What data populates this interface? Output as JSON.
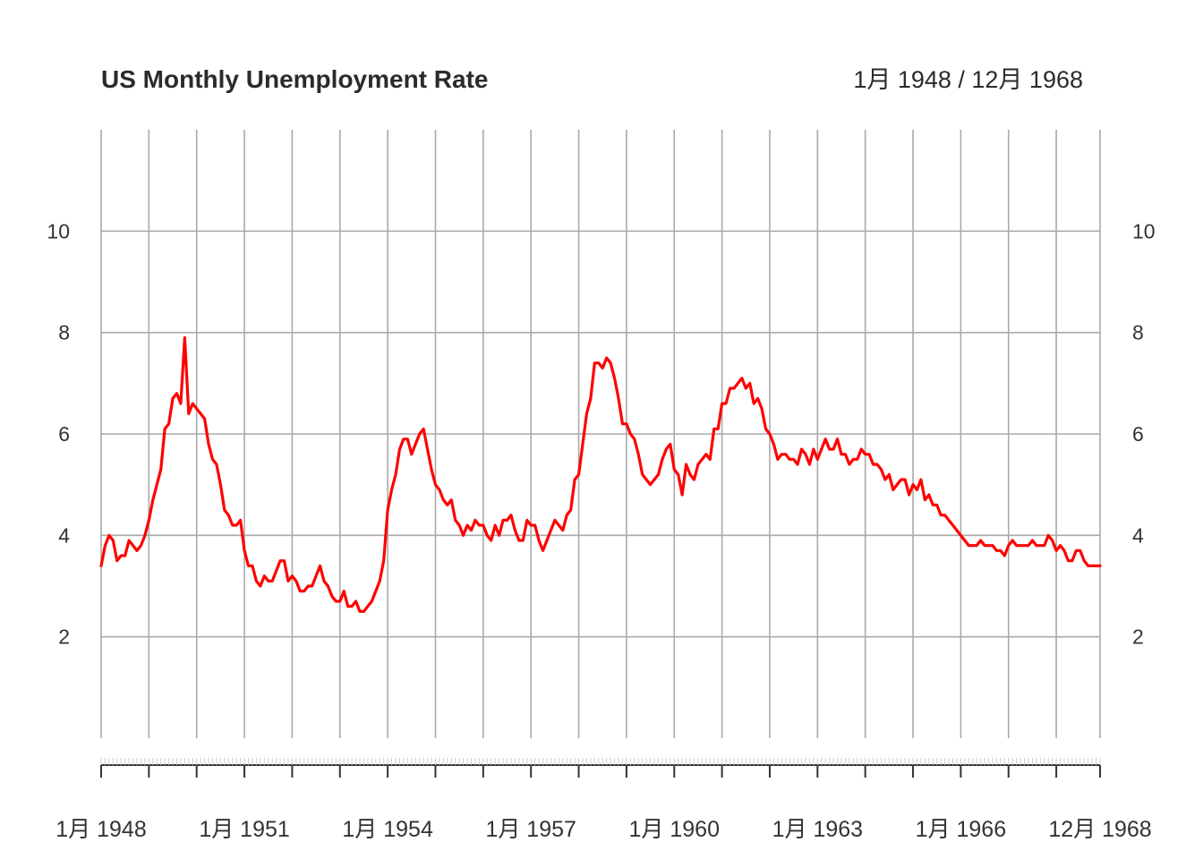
{
  "chart_data": {
    "type": "line",
    "title": "US Monthly Unemployment Rate",
    "date_range_label": "1月 1948 / 12月 1968",
    "xlabel": "",
    "ylabel": "",
    "ylim": [
      0,
      12
    ],
    "yticks": [
      2,
      4,
      6,
      8,
      10
    ],
    "ytick_labels": [
      "2",
      "4",
      "6",
      "8",
      "10"
    ],
    "x_start": "1948-01",
    "x_end": "1968-12",
    "xtick_labels": [
      {
        "date": "1948-01",
        "label": "1月 1948"
      },
      {
        "date": "1951-01",
        "label": "1月 1951"
      },
      {
        "date": "1954-01",
        "label": "1月 1954"
      },
      {
        "date": "1957-01",
        "label": "1月 1957"
      },
      {
        "date": "1960-01",
        "label": "1月 1960"
      },
      {
        "date": "1963-01",
        "label": "1月 1963"
      },
      {
        "date": "1966-01",
        "label": "1月 1966"
      },
      {
        "date": "1968-12",
        "label": "12月 1968"
      }
    ],
    "grid": true,
    "legend": "none",
    "colors": {
      "line": "#ff0000",
      "grid": "#aaaaaa",
      "text": "#333333"
    },
    "series": [
      {
        "color": "#ff0000",
        "values": [
          [
            3.4,
            3.8,
            4.0,
            3.9,
            3.5,
            3.6,
            3.6,
            3.9,
            3.8,
            3.7,
            3.8,
            4.0
          ],
          [
            4.3,
            4.7,
            5.0,
            5.3,
            6.1,
            6.2,
            6.7,
            6.8,
            6.6,
            7.9,
            6.4,
            6.6
          ],
          [
            6.5,
            6.4,
            6.3,
            5.8,
            5.5,
            5.4,
            5.0,
            4.5,
            4.4,
            4.2,
            4.2,
            4.3
          ],
          [
            3.7,
            3.4,
            3.4,
            3.1,
            3.0,
            3.2,
            3.1,
            3.1,
            3.3,
            3.5,
            3.5,
            3.1
          ],
          [
            3.2,
            3.1,
            2.9,
            2.9,
            3.0,
            3.0,
            3.2,
            3.4,
            3.1,
            3.0,
            2.8,
            2.7
          ],
          [
            2.7,
            2.9,
            2.6,
            2.6,
            2.7,
            2.5,
            2.5,
            2.6,
            2.7,
            2.9,
            3.1,
            3.5
          ],
          [
            4.5,
            4.9,
            5.2,
            5.7,
            5.9,
            5.9,
            5.6,
            5.8,
            6.0,
            6.1,
            5.7,
            5.3
          ],
          [
            5.0,
            4.9,
            4.7,
            4.6,
            4.7,
            4.3,
            4.2,
            4.0,
            4.2,
            4.1,
            4.3,
            4.2
          ],
          [
            4.2,
            4.0,
            3.9,
            4.2,
            4.0,
            4.3,
            4.3,
            4.4,
            4.1,
            3.9,
            3.9,
            4.3
          ],
          [
            4.2,
            4.2,
            3.9,
            3.7,
            3.9,
            4.1,
            4.3,
            4.2,
            4.1,
            4.4,
            4.5,
            5.1
          ],
          [
            5.2,
            5.8,
            6.4,
            6.7,
            7.4,
            7.4,
            7.3,
            7.5,
            7.4,
            7.1,
            6.7,
            6.2
          ],
          [
            6.2,
            6.0,
            5.9,
            5.6,
            5.2,
            5.1,
            5.0,
            5.1,
            5.2,
            5.5,
            5.7,
            5.8
          ],
          [
            5.3,
            5.2,
            4.8,
            5.4,
            5.2,
            5.1,
            5.4,
            5.5,
            5.6,
            5.5,
            6.1,
            6.1
          ],
          [
            6.6,
            6.6,
            6.9,
            6.9,
            7.0,
            7.1,
            6.9,
            7.0,
            6.6,
            6.7,
            6.5,
            6.1
          ],
          [
            6.0,
            5.8,
            5.5,
            5.6,
            5.6,
            5.5,
            5.5,
            5.4,
            5.7,
            5.6,
            5.4,
            5.7
          ],
          [
            5.5,
            5.7,
            5.9,
            5.7,
            5.7,
            5.9,
            5.6,
            5.6,
            5.4,
            5.5,
            5.5,
            5.7
          ],
          [
            5.6,
            5.6,
            5.4,
            5.4,
            5.3,
            5.1,
            5.2,
            4.9,
            5.0,
            5.1,
            5.1,
            4.8
          ],
          [
            5.0,
            4.9,
            5.1,
            4.7,
            4.8,
            4.6,
            4.6,
            4.4,
            4.4,
            4.3,
            4.2,
            4.1
          ],
          [
            4.0,
            3.9,
            3.8,
            3.8,
            3.8,
            3.9,
            3.8,
            3.8,
            3.8,
            3.7,
            3.7,
            3.6
          ],
          [
            3.8,
            3.9,
            3.8,
            3.8,
            3.8,
            3.8,
            3.9,
            3.8,
            3.8,
            3.8,
            4.0,
            3.9
          ],
          [
            3.7,
            3.8,
            3.7,
            3.5,
            3.5,
            3.7,
            3.7,
            3.5,
            3.4,
            3.4,
            3.4,
            3.4
          ]
        ]
      }
    ]
  }
}
